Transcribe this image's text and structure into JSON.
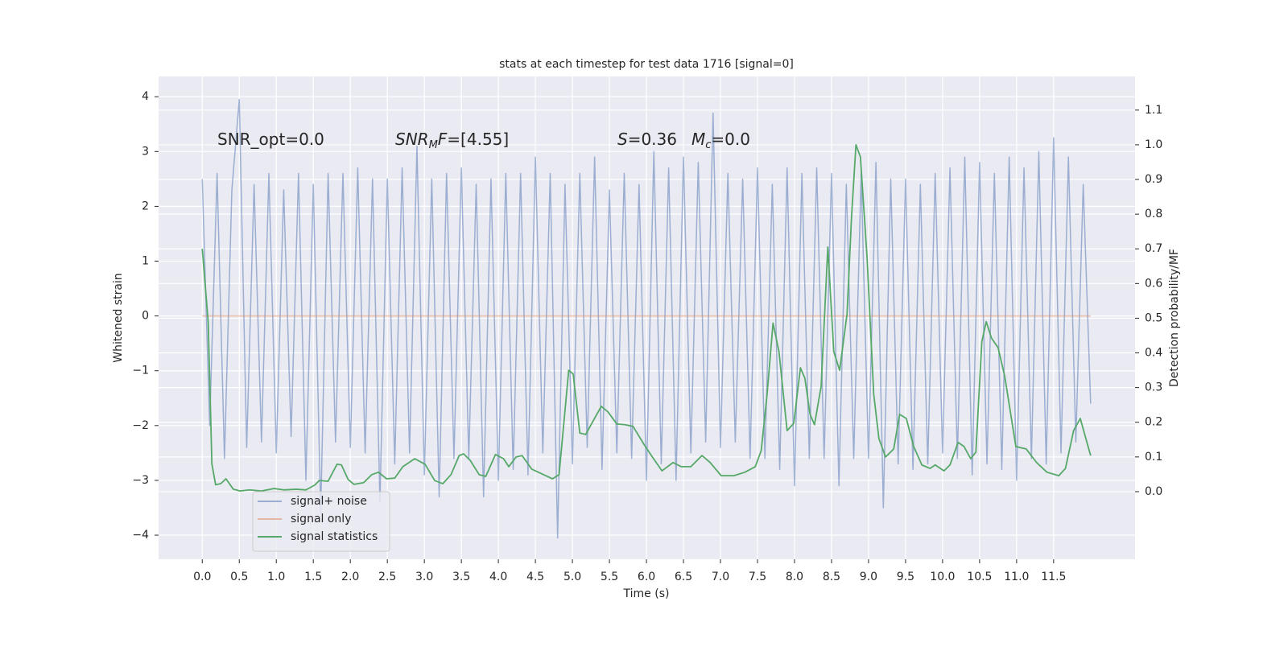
{
  "chart_data": {
    "type": "line",
    "title": "stats at each timestep for test data 1716 [signal=0]",
    "x_label": "Time (s)",
    "y_label": "Whitened strain",
    "y2_label": "Detection probability/MF",
    "xlim": [
      -0.59,
      12.6
    ],
    "ylim": [
      -4.44,
      4.37
    ],
    "y2lim": [
      -0.195,
      1.197
    ],
    "xticks": [
      {
        "value": 0,
        "label": "0.0"
      },
      0.5,
      {
        "value": 1,
        "label": "1.0"
      },
      1.5,
      {
        "value": 2,
        "label": "2.0"
      },
      2.5,
      {
        "value": 3,
        "label": "3.0"
      },
      3.5,
      {
        "value": 4,
        "label": "4.0"
      },
      4.5,
      {
        "value": 5,
        "label": "5.0"
      },
      5.5,
      {
        "value": 6,
        "label": "6.0"
      },
      6.5,
      {
        "value": 7,
        "label": "7.0"
      },
      7.5,
      {
        "value": 8,
        "label": "8.0"
      },
      8.5,
      {
        "value": 9,
        "label": "9.0"
      },
      9.5,
      {
        "value": 10,
        "label": "10.0"
      },
      10.5,
      {
        "value": 11,
        "label": "11.0"
      },
      11.5
    ],
    "yticks": [
      {
        "value": -4,
        "label": "−4"
      },
      {
        "value": -3,
        "label": "−3"
      },
      {
        "value": -2,
        "label": "−2"
      },
      {
        "value": -1,
        "label": "−1"
      },
      0,
      1,
      2,
      3,
      4
    ],
    "y2ticks": [
      {
        "value": 0,
        "label": "0.0"
      },
      0.1,
      0.2,
      0.3,
      0.4,
      0.5,
      0.6,
      0.7,
      0.8,
      0.9,
      {
        "value": 1,
        "label": "1.0"
      },
      1.1
    ],
    "grid": true,
    "legend": "lower left",
    "annotations": [
      {
        "parts": [
          "SNR_opt=0.0"
        ]
      },
      {
        "parts": [
          "SNR",
          "M",
          "F",
          "=[4.55]"
        ]
      },
      {
        "parts": [
          "S",
          "=0.36"
        ]
      },
      {
        "parts": [
          "M",
          "c",
          "=0.0"
        ]
      }
    ],
    "series": [
      {
        "name": "signal+ noise",
        "color": "#4c72b0",
        "opacity": 0.5,
        "x": [
          0.0,
          0.1,
          0.2,
          0.3,
          0.4,
          0.5,
          0.6,
          0.7,
          0.8,
          0.9,
          1.0,
          1.1,
          1.2,
          1.3,
          1.4,
          1.5,
          1.6,
          1.7,
          1.8,
          1.9,
          2.0,
          2.1,
          2.2,
          2.3,
          2.4,
          2.5,
          2.6,
          2.7,
          2.8,
          2.9,
          3.0,
          3.1,
          3.2,
          3.3,
          3.4,
          3.5,
          3.6,
          3.7,
          3.8,
          3.9,
          4.0,
          4.1,
          4.2,
          4.3,
          4.4,
          4.5,
          4.6,
          4.7,
          4.8,
          4.9,
          5.0,
          5.1,
          5.2,
          5.3,
          5.4,
          5.5,
          5.6,
          5.7,
          5.8,
          5.9,
          6.0,
          6.1,
          6.2,
          6.3,
          6.4,
          6.5,
          6.6,
          6.7,
          6.8,
          6.9,
          7.0,
          7.1,
          7.2,
          7.3,
          7.4,
          7.5,
          7.6,
          7.7,
          7.8,
          7.9,
          8.0,
          8.1,
          8.2,
          8.3,
          8.4,
          8.5,
          8.6,
          8.7,
          8.8,
          8.9,
          9.0,
          9.1,
          9.2,
          9.3,
          9.4,
          9.5,
          9.6,
          9.7,
          9.8,
          9.9,
          10.0,
          10.1,
          10.2,
          10.3,
          10.4,
          10.5,
          10.6,
          10.7,
          10.8,
          10.9,
          11.0,
          11.1,
          11.2,
          11.3,
          11.4,
          11.5,
          11.6,
          11.7,
          11.8,
          11.9,
          12.0
        ],
        "values": [
          2.5,
          -2.0,
          2.6,
          -2.6,
          2.3,
          3.95,
          -2.4,
          2.4,
          -2.3,
          2.6,
          -2.5,
          2.3,
          -2.2,
          2.6,
          -3.0,
          2.4,
          -3.6,
          2.6,
          -2.3,
          2.6,
          -2.4,
          2.7,
          -2.5,
          2.5,
          -3.4,
          2.5,
          -2.7,
          2.7,
          -2.5,
          3.1,
          -2.9,
          2.5,
          -3.3,
          2.6,
          -2.6,
          2.7,
          -2.6,
          2.4,
          -3.3,
          2.5,
          -3.0,
          2.6,
          -2.8,
          2.6,
          -2.9,
          2.9,
          -2.5,
          2.6,
          -4.05,
          2.4,
          -2.7,
          2.6,
          -2.4,
          2.9,
          -2.8,
          2.3,
          -2.5,
          2.6,
          -2.6,
          2.4,
          -3.0,
          3.0,
          -2.7,
          2.7,
          -3.0,
          2.9,
          -2.5,
          2.8,
          -2.3,
          3.7,
          -2.4,
          2.6,
          -2.3,
          2.5,
          -2.6,
          2.7,
          -2.6,
          2.4,
          -2.8,
          2.7,
          -3.1,
          2.6,
          -2.6,
          2.7,
          -2.6,
          2.6,
          -3.1,
          2.4,
          -2.6,
          2.6,
          -2.6,
          2.8,
          -3.5,
          2.5,
          -2.7,
          2.5,
          -2.8,
          2.4,
          -2.7,
          2.6,
          -2.5,
          2.7,
          -2.6,
          2.9,
          -2.9,
          2.8,
          -2.7,
          2.6,
          -2.8,
          2.9,
          -3.0,
          2.7,
          -2.6,
          3.0,
          -2.7,
          3.25,
          -2.5,
          2.9,
          -2.3,
          2.4,
          -1.6
        ]
      },
      {
        "name": "signal only",
        "color": "#dd8452",
        "opacity": 0.5,
        "x": [
          0.0,
          12.0
        ],
        "values": [
          0,
          0
        ]
      },
      {
        "name": "signal statistics",
        "color": "#55a868",
        "opacity": 1,
        "axis": "y2",
        "x": [
          0.0,
          0.08,
          0.13,
          0.18,
          0.25,
          0.32,
          0.42,
          0.51,
          0.64,
          0.8,
          0.97,
          1.1,
          1.27,
          1.4,
          1.52,
          1.58,
          1.7,
          1.82,
          1.88,
          1.97,
          2.05,
          2.18,
          2.29,
          2.38,
          2.49,
          2.6,
          2.71,
          2.87,
          3.01,
          3.14,
          3.25,
          3.36,
          3.47,
          3.53,
          3.62,
          3.74,
          3.83,
          3.96,
          4.07,
          4.14,
          4.24,
          4.32,
          4.45,
          4.61,
          4.73,
          4.82,
          4.95,
          5.01,
          5.1,
          5.18,
          5.27,
          5.39,
          5.48,
          5.6,
          5.71,
          5.82,
          5.97,
          6.08,
          6.21,
          6.36,
          6.47,
          6.6,
          6.75,
          6.86,
          7.01,
          7.18,
          7.33,
          7.47,
          7.55,
          7.63,
          7.71,
          7.79,
          7.9,
          7.99,
          8.08,
          8.14,
          8.21,
          8.27,
          8.36,
          8.45,
          8.53,
          8.61,
          8.71,
          8.77,
          8.83,
          8.89,
          8.98,
          9.07,
          9.14,
          9.23,
          9.34,
          9.42,
          9.51,
          9.61,
          9.72,
          9.83,
          9.9,
          10.02,
          10.1,
          10.21,
          10.29,
          10.38,
          10.45,
          10.53,
          10.59,
          10.66,
          10.75,
          10.84,
          10.99,
          11.13,
          11.27,
          11.41,
          11.57,
          11.66,
          11.77,
          11.86,
          12.0
        ],
        "values": [
          0.7,
          0.49,
          0.08,
          0.02,
          0.023,
          0.037,
          0.007,
          0.002,
          0.005,
          0.002,
          0.009,
          0.005,
          0.007,
          0.005,
          0.019,
          0.032,
          0.03,
          0.079,
          0.077,
          0.035,
          0.021,
          0.026,
          0.049,
          0.056,
          0.037,
          0.039,
          0.072,
          0.095,
          0.079,
          0.032,
          0.023,
          0.049,
          0.104,
          0.109,
          0.09,
          0.049,
          0.044,
          0.107,
          0.095,
          0.072,
          0.1,
          0.104,
          0.065,
          0.049,
          0.037,
          0.049,
          0.35,
          0.339,
          0.169,
          0.165,
          0.2,
          0.246,
          0.23,
          0.195,
          0.193,
          0.188,
          0.135,
          0.1,
          0.06,
          0.084,
          0.072,
          0.072,
          0.104,
          0.084,
          0.046,
          0.046,
          0.056,
          0.072,
          0.118,
          0.281,
          0.486,
          0.404,
          0.176,
          0.197,
          0.357,
          0.327,
          0.223,
          0.193,
          0.304,
          0.705,
          0.404,
          0.35,
          0.513,
          0.791,
          1.0,
          0.965,
          0.675,
          0.281,
          0.153,
          0.1,
          0.123,
          0.223,
          0.211,
          0.13,
          0.077,
          0.067,
          0.077,
          0.06,
          0.077,
          0.142,
          0.13,
          0.095,
          0.114,
          0.432,
          0.49,
          0.443,
          0.415,
          0.332,
          0.13,
          0.123,
          0.084,
          0.056,
          0.046,
          0.067,
          0.176,
          0.211,
          0.104
        ]
      }
    ]
  }
}
